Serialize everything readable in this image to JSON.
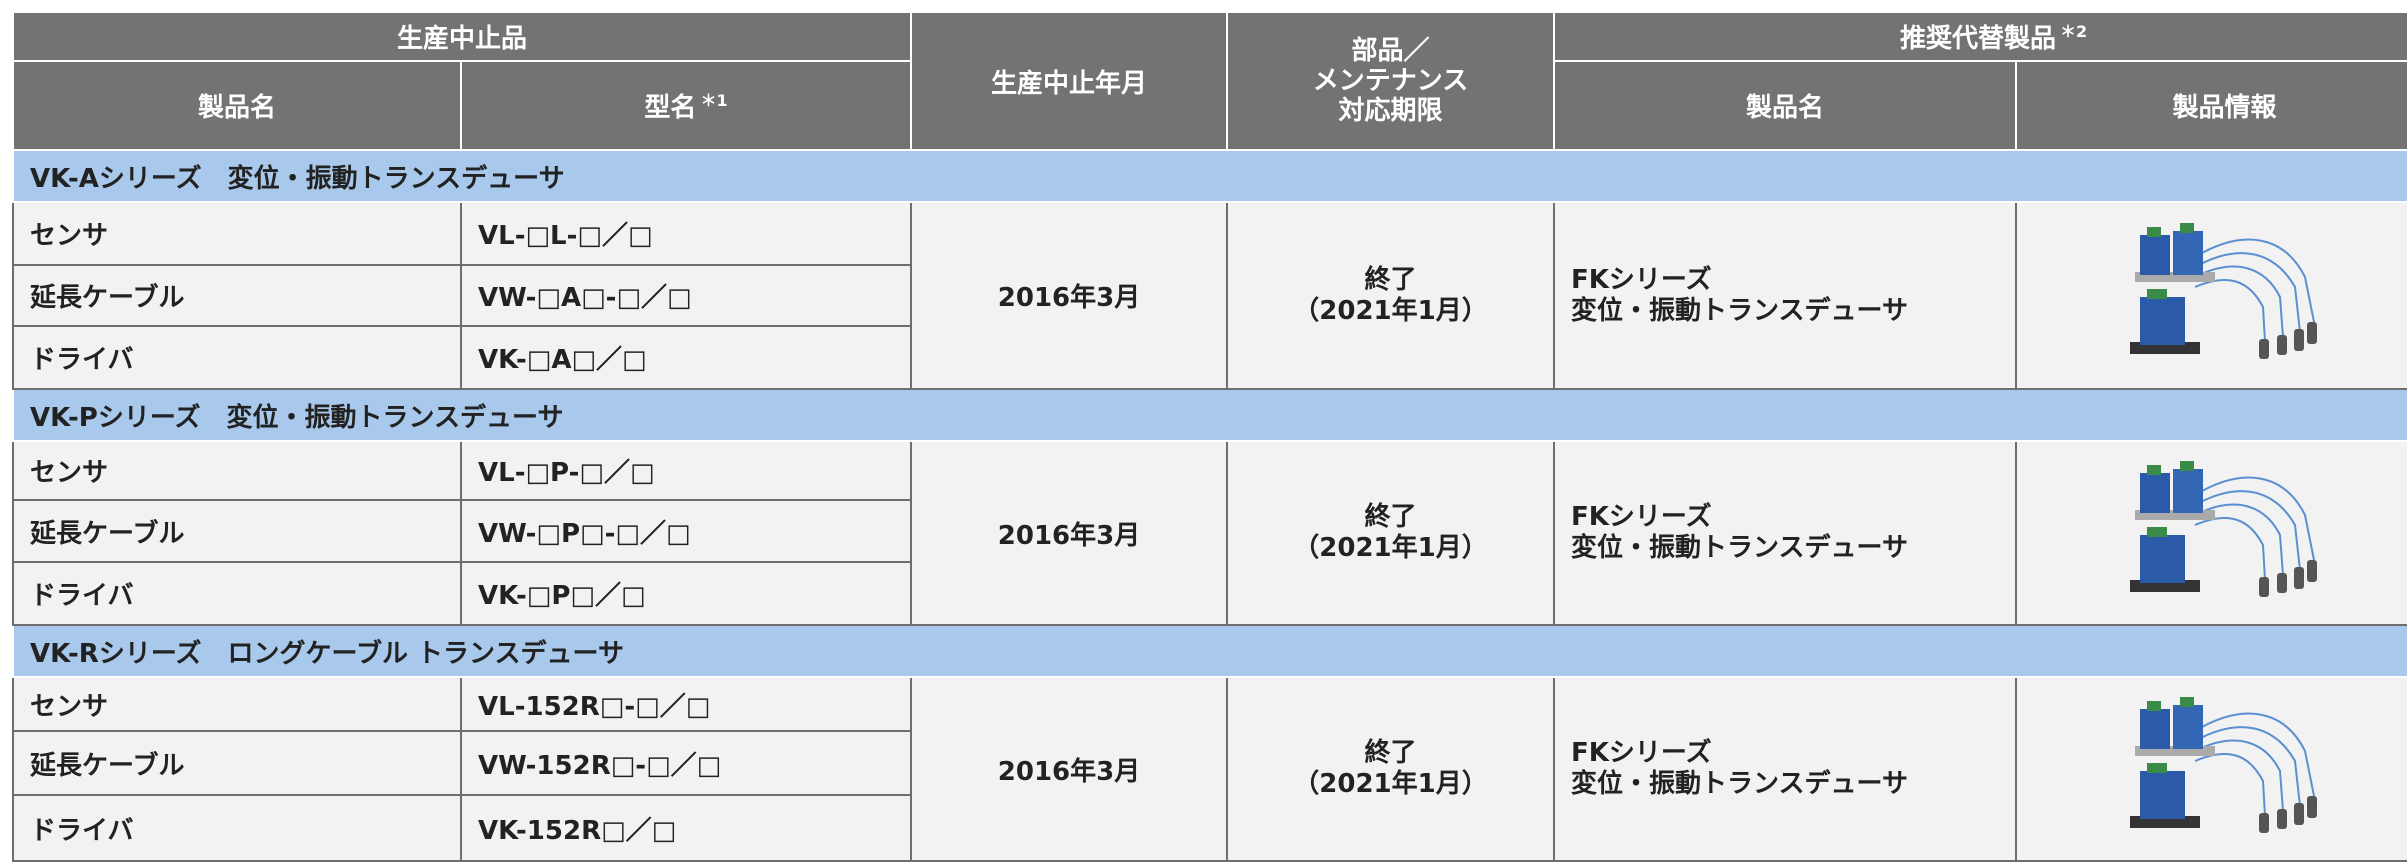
{
  "header": {
    "discontinued": "生産中止品",
    "product_name": "製品名",
    "model": "型名",
    "model_note": "＊1",
    "discontinued_date": "生産中止年月",
    "maintenance": [
      "部品／",
      "メンテナンス",
      "対応期限"
    ],
    "replacement": "推奨代替製品",
    "replacement_note": "＊2",
    "replacement_name": "製品名",
    "product_info": "製品情報"
  },
  "groups": [
    {
      "title": "VK-Aシリーズ　変位・振動トランスデューサ",
      "rows": [
        [
          "センサ",
          "VL-□L-□／□"
        ],
        [
          "延長ケーブル",
          "VW-□A□-□／□"
        ],
        [
          "ドライバ",
          "VK-□A□／□"
        ]
      ],
      "discontinued_date": "2016年3月",
      "maintenance": [
        "終了",
        "（2021年1月）"
      ],
      "replacement": [
        "FKシリーズ",
        "変位・振動トランスデューサ"
      ]
    },
    {
      "title": "VK-Pシリーズ　変位・振動トランスデューサ",
      "rows": [
        [
          "センサ",
          "VL-□P-□／□"
        ],
        [
          "延長ケーブル",
          "VW-□P□-□／□"
        ],
        [
          "ドライバ",
          "VK-□P□／□"
        ]
      ],
      "discontinued_date": "2016年3月",
      "maintenance": [
        "終了",
        "（2021年1月）"
      ],
      "replacement": [
        "FKシリーズ",
        "変位・振動トランスデューサ"
      ]
    },
    {
      "title": "VK-Rシリーズ　ロングケーブル トランスデューサ",
      "rows": [
        [
          "センサ",
          "VL-152R□-□／□"
        ],
        [
          "延長ケーブル",
          "VW-152R□-□／□"
        ],
        [
          "ドライバ",
          "VK-152R□／□"
        ]
      ],
      "discontinued_date": "2016年3月",
      "maintenance": [
        "終了",
        "（2021年1月）"
      ],
      "replacement": [
        "FKシリーズ",
        "変位・振動トランスデューサ"
      ]
    }
  ]
}
